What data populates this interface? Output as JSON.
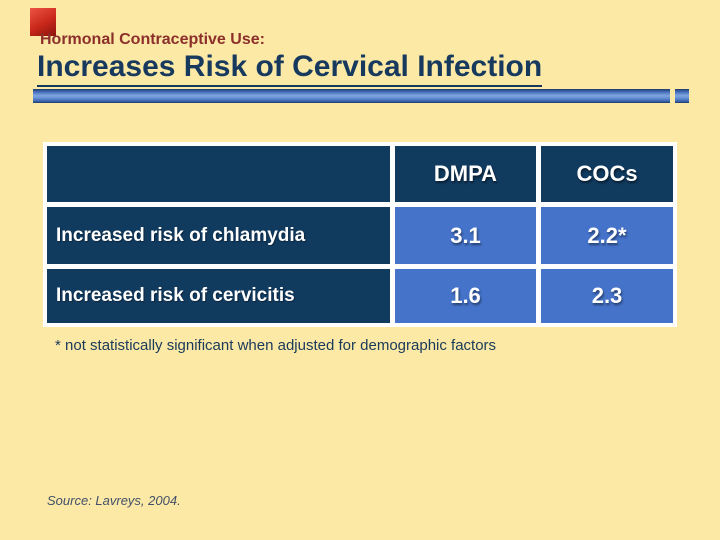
{
  "header": {
    "kicker": "Hormonal Contraceptive Use:",
    "title": "Increases Risk of Cervical Infection"
  },
  "table": {
    "headers": [
      "",
      "DMPA",
      "COCs"
    ],
    "rows": [
      [
        "Increased risk of chlamydia",
        "3.1",
        "2.2*"
      ],
      [
        "Increased risk of cervicitis",
        "1.6",
        "2.3"
      ]
    ]
  },
  "footnote": "* not statistically significant when adjusted for demographic factors",
  "source": "Source: Lavreys, 2004.",
  "colors": {
    "background": "#FBE9A5",
    "accent_red": "#C8271A",
    "kicker_maroon": "#8C2F2B",
    "title_navy": "#17395E",
    "cell_navy": "#113A5F",
    "cell_blue": "#4573C9",
    "cell_text": "#FFFFFF",
    "divider_blue": "#3F68B4",
    "table_border": "#FFFFFF"
  }
}
